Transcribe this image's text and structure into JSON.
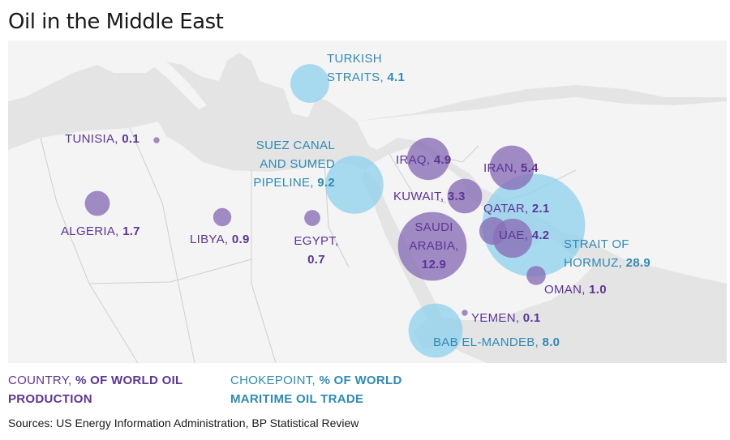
{
  "title": "Oil in the Middle East",
  "colors": {
    "country": "#5c3595",
    "chokepoint": "#2f8ab6",
    "country_fill": "#8a6fb8",
    "chokepoint_fill": "#8fd1ee",
    "land": "#f4f4f4",
    "sea": "#e4e4e4"
  },
  "countries": [
    {
      "name": "TUNISIA",
      "value": "0.1"
    },
    {
      "name": "ALGERIA",
      "value": "1.7"
    },
    {
      "name": "LIBYA",
      "value": "0.9"
    },
    {
      "name": "EGYPT",
      "value": "0.7"
    },
    {
      "name": "IRAQ",
      "value": "4.9"
    },
    {
      "name": "IRAN",
      "value": "5.4"
    },
    {
      "name": "KUWAIT",
      "value": "3.3"
    },
    {
      "name": "QATAR",
      "value": "2.1"
    },
    {
      "name": "SAUDI ARABIA",
      "line1": "SAUDI",
      "line2": "ARABIA,",
      "value": "12.9"
    },
    {
      "name": "UAE",
      "value": "4.2"
    },
    {
      "name": "OMAN",
      "value": "1.0"
    },
    {
      "name": "YEMEN",
      "value": "0.1"
    }
  ],
  "chokepoints": [
    {
      "name": "TURKISH STRAITS",
      "line1": "TURKISH",
      "line2": "STRAITS,",
      "value": "4.1"
    },
    {
      "name": "SUEZ CANAL AND SUMED PIPELINE",
      "line1": "SUEZ CANAL",
      "line2": "AND SUMED",
      "line3": "PIPELINE,",
      "value": "9.2"
    },
    {
      "name": "STRAIT OF HORMUZ",
      "line1": "STRAIT OF",
      "line2": "HORMUZ,",
      "value": "28.9"
    },
    {
      "name": "BAB EL-MANDEB",
      "value": "8.0"
    }
  ],
  "legend": {
    "country_prefix": "COUNTRY,",
    "country_bold_1": "% OF WORLD OIL",
    "country_bold_2": "PRODUCTION",
    "chokepoint_prefix": "CHOKEPOINT,",
    "chokepoint_bold_1": "% OF WORLD",
    "chokepoint_bold_2": "MARITIME OIL TRADE"
  },
  "source": "Sources: US Energy Information Administration, BP Statistical Review"
}
